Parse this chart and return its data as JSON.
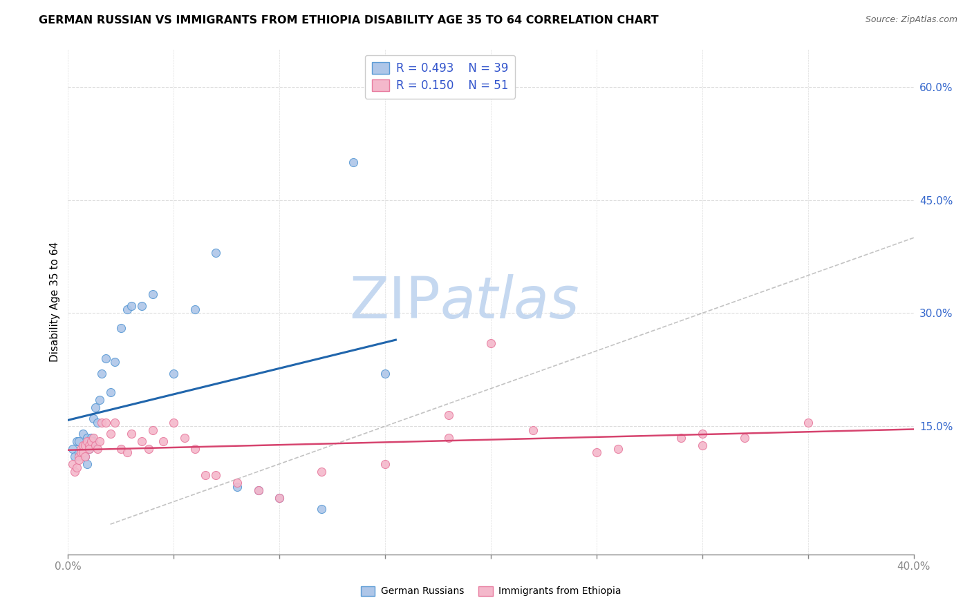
{
  "title": "GERMAN RUSSIAN VS IMMIGRANTS FROM ETHIOPIA DISABILITY AGE 35 TO 64 CORRELATION CHART",
  "source": "Source: ZipAtlas.com",
  "ylabel": "Disability Age 35 to 64",
  "xlim": [
    0.0,
    0.4
  ],
  "ylim": [
    -0.02,
    0.65
  ],
  "xticks": [
    0.0,
    0.05,
    0.1,
    0.15,
    0.2,
    0.25,
    0.3,
    0.35,
    0.4
  ],
  "yticks_right": [
    0.15,
    0.3,
    0.45,
    0.6
  ],
  "ytick_labels_right": [
    "15.0%",
    "30.0%",
    "45.0%",
    "60.0%"
  ],
  "blue_R": 0.493,
  "blue_N": 39,
  "pink_R": 0.15,
  "pink_N": 51,
  "blue_dot_face": "#aec6e8",
  "blue_dot_edge": "#5b9bd5",
  "pink_dot_face": "#f4b8cb",
  "pink_dot_edge": "#e87da0",
  "blue_line_color": "#2166ac",
  "pink_line_color": "#d6436e",
  "diag_color": "#aaaaaa",
  "watermark_zip_color": "#c5d8f0",
  "watermark_atlas_color": "#c5d8f0",
  "legend_R_color": "#3355cc",
  "legend_N_color": "#22aa22",
  "grid_color": "#dddddd",
  "blue_x": [
    0.002,
    0.003,
    0.004,
    0.005,
    0.005,
    0.006,
    0.006,
    0.007,
    0.007,
    0.008,
    0.008,
    0.009,
    0.009,
    0.01,
    0.01,
    0.011,
    0.012,
    0.012,
    0.013,
    0.014,
    0.015,
    0.016,
    0.018,
    0.02,
    0.022,
    0.025,
    0.028,
    0.03,
    0.035,
    0.04,
    0.05,
    0.06,
    0.07,
    0.08,
    0.09,
    0.1,
    0.12,
    0.135,
    0.15
  ],
  "blue_y": [
    0.12,
    0.11,
    0.13,
    0.13,
    0.115,
    0.12,
    0.115,
    0.12,
    0.14,
    0.125,
    0.11,
    0.135,
    0.1,
    0.13,
    0.12,
    0.135,
    0.13,
    0.16,
    0.175,
    0.155,
    0.185,
    0.22,
    0.24,
    0.195,
    0.235,
    0.28,
    0.305,
    0.31,
    0.31,
    0.325,
    0.22,
    0.305,
    0.38,
    0.07,
    0.065,
    0.055,
    0.04,
    0.5,
    0.22
  ],
  "pink_x": [
    0.002,
    0.003,
    0.004,
    0.005,
    0.005,
    0.006,
    0.006,
    0.007,
    0.007,
    0.008,
    0.008,
    0.009,
    0.01,
    0.01,
    0.011,
    0.012,
    0.013,
    0.014,
    0.015,
    0.016,
    0.018,
    0.02,
    0.022,
    0.025,
    0.028,
    0.03,
    0.035,
    0.038,
    0.04,
    0.045,
    0.05,
    0.055,
    0.06,
    0.065,
    0.07,
    0.08,
    0.09,
    0.1,
    0.12,
    0.15,
    0.18,
    0.2,
    0.25,
    0.29,
    0.3,
    0.32,
    0.35,
    0.18,
    0.22,
    0.26,
    0.3
  ],
  "pink_y": [
    0.1,
    0.09,
    0.095,
    0.11,
    0.105,
    0.12,
    0.115,
    0.115,
    0.125,
    0.125,
    0.11,
    0.13,
    0.125,
    0.12,
    0.13,
    0.135,
    0.125,
    0.12,
    0.13,
    0.155,
    0.155,
    0.14,
    0.155,
    0.12,
    0.115,
    0.14,
    0.13,
    0.12,
    0.145,
    0.13,
    0.155,
    0.135,
    0.12,
    0.085,
    0.085,
    0.075,
    0.065,
    0.055,
    0.09,
    0.1,
    0.135,
    0.26,
    0.115,
    0.135,
    0.125,
    0.135,
    0.155,
    0.165,
    0.145,
    0.12,
    0.14
  ]
}
